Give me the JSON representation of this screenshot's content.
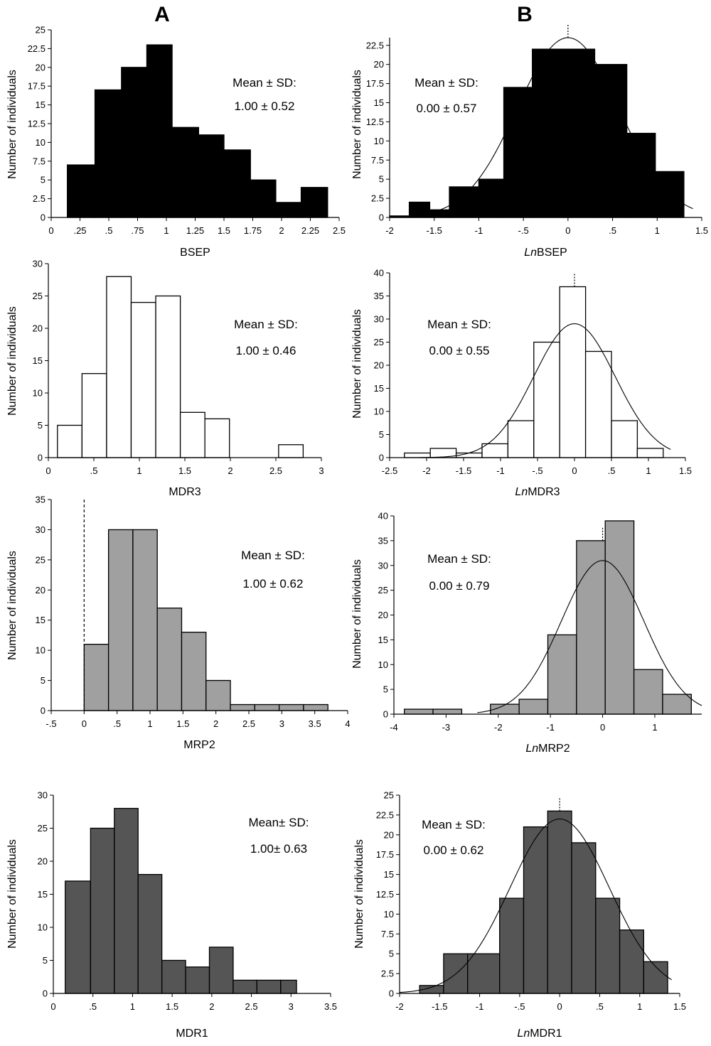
{
  "panel_labels": {
    "a": "A",
    "b": "B"
  },
  "styles": {
    "black": "#000000",
    "white": "#ffffff",
    "light_gray": "#a0a0a0",
    "dark_gray": "#555555",
    "axis": "#000000"
  },
  "chart_data": [
    {
      "id": "bsep",
      "type": "bar",
      "column": "A",
      "xlabel": "BSEP",
      "ylabel": "Number of individuals",
      "stat_label": "Mean ± SD:",
      "stat_value": "1.00 ± 0.52",
      "xlim": [
        0,
        2.5
      ],
      "ylim": [
        0,
        25
      ],
      "xticks": [
        {
          "v": 0,
          "t": "0"
        },
        {
          "v": 0.25,
          "t": ".25"
        },
        {
          "v": 0.5,
          "t": ".5"
        },
        {
          "v": 0.75,
          "t": ".75"
        },
        {
          "v": 1,
          "t": "1"
        },
        {
          "v": 1.25,
          "t": "1.25"
        },
        {
          "v": 1.5,
          "t": "1.5"
        },
        {
          "v": 1.75,
          "t": "1.75"
        },
        {
          "v": 2,
          "t": "2"
        },
        {
          "v": 2.25,
          "t": "2.25"
        },
        {
          "v": 2.5,
          "t": "2.5"
        }
      ],
      "yticks": [
        {
          "v": 0,
          "t": "0"
        },
        {
          "v": 2.5,
          "t": "2.5"
        },
        {
          "v": 5,
          "t": "5"
        },
        {
          "v": 7.5,
          "t": "7.5"
        },
        {
          "v": 10,
          "t": "10"
        },
        {
          "v": 12.5,
          "t": "12.5"
        },
        {
          "v": 15,
          "t": "15"
        },
        {
          "v": 17.5,
          "t": "17.5"
        },
        {
          "v": 20,
          "t": "20"
        },
        {
          "v": 22.5,
          "t": "22.5"
        },
        {
          "v": 25,
          "t": "25"
        }
      ],
      "bin_edges": [
        0.14,
        0.38,
        0.61,
        0.83,
        1.05,
        1.28,
        1.5,
        1.73,
        1.95,
        2.17,
        2.4
      ],
      "counts": [
        7,
        17,
        20,
        23,
        12,
        11,
        9,
        5,
        2,
        4
      ],
      "fill": "black"
    },
    {
      "id": "ln-bsep",
      "type": "bar",
      "column": "B",
      "xlabel_italic": "Ln",
      "xlabel_rest": "BSEP",
      "ylabel": "Number of individuals",
      "stat_label": "Mean ± SD:",
      "stat_value": "0.00 ± 0.57",
      "xlim": [
        -2,
        1.5
      ],
      "ylim": [
        0,
        23.5
      ],
      "xticks": [
        {
          "v": -2,
          "t": "-2"
        },
        {
          "v": -1.5,
          "t": "-1.5"
        },
        {
          "v": -1,
          "t": "-1"
        },
        {
          "v": -0.5,
          "t": "-.5"
        },
        {
          "v": 0,
          "t": "0"
        },
        {
          "v": 0.5,
          "t": ".5"
        },
        {
          "v": 1,
          "t": "1"
        },
        {
          "v": 1.5,
          "t": "1.5"
        }
      ],
      "yticks": [
        {
          "v": 0,
          "t": "0"
        },
        {
          "v": 2.5,
          "t": "2.5"
        },
        {
          "v": 5,
          "t": "5"
        },
        {
          "v": 7.5,
          "t": "7.5"
        },
        {
          "v": 10,
          "t": "10"
        },
        {
          "v": 12.5,
          "t": "12.5"
        },
        {
          "v": 15,
          "t": "15"
        },
        {
          "v": 17.5,
          "t": "17.5"
        },
        {
          "v": 20,
          "t": "20"
        },
        {
          "v": 22.5,
          "t": "22.5"
        }
      ],
      "bin_edges": [
        -2.0,
        -1.78,
        -1.55,
        -1.33,
        -1.0,
        -0.72,
        -0.4,
        -0.05,
        0.3,
        0.66,
        0.98,
        1.3
      ],
      "counts": [
        0.2,
        2,
        1,
        4,
        5,
        17,
        22,
        22,
        20,
        11,
        6
      ],
      "fill": "black",
      "curve": {
        "mean": 0.0,
        "sd": 0.57,
        "peak": 23.5,
        "x_range": [
          -2,
          1.4
        ]
      },
      "mean_marker": 0.0
    },
    {
      "id": "mdr3",
      "type": "bar",
      "column": "A",
      "xlabel": "MDR3",
      "ylabel": "Number of individuals",
      "stat_label": "Mean ± SD:",
      "stat_value": "1.00 ± 0.46",
      "xlim": [
        0,
        3
      ],
      "ylim": [
        0,
        30
      ],
      "xticks": [
        {
          "v": 0,
          "t": "0"
        },
        {
          "v": 0.5,
          "t": ".5"
        },
        {
          "v": 1,
          "t": "1"
        },
        {
          "v": 1.5,
          "t": "1.5"
        },
        {
          "v": 2,
          "t": "2"
        },
        {
          "v": 2.5,
          "t": "2.5"
        },
        {
          "v": 3,
          "t": "3"
        }
      ],
      "yticks": [
        {
          "v": 0,
          "t": "0"
        },
        {
          "v": 5,
          "t": "5"
        },
        {
          "v": 10,
          "t": "10"
        },
        {
          "v": 15,
          "t": "15"
        },
        {
          "v": 20,
          "t": "20"
        },
        {
          "v": 25,
          "t": "25"
        },
        {
          "v": 30,
          "t": "30"
        }
      ],
      "bin_edges": [
        0.1,
        0.37,
        0.64,
        0.91,
        1.18,
        1.45,
        1.72,
        1.99,
        2.26,
        2.53,
        2.8
      ],
      "counts": [
        5,
        13,
        28,
        24,
        25,
        7,
        6,
        0,
        0,
        2
      ],
      "fill": "white"
    },
    {
      "id": "ln-mdr3",
      "type": "bar",
      "column": "B",
      "xlabel_italic": "Ln",
      "xlabel_rest": "MDR3",
      "ylabel": "Number of individuals",
      "stat_label": "Mean ± SD:",
      "stat_value": "0.00 ± 0.55",
      "xlim": [
        -2.5,
        1.5
      ],
      "ylim": [
        0,
        40
      ],
      "xticks": [
        {
          "v": -2.5,
          "t": "-2.5"
        },
        {
          "v": -2,
          "t": "-2"
        },
        {
          "v": -1.5,
          "t": "-1.5"
        },
        {
          "v": -1,
          "t": "-1"
        },
        {
          "v": -0.5,
          "t": "-.5"
        },
        {
          "v": 0,
          "t": "0"
        },
        {
          "v": 0.5,
          "t": ".5"
        },
        {
          "v": 1,
          "t": "1"
        },
        {
          "v": 1.5,
          "t": "1.5"
        }
      ],
      "yticks": [
        {
          "v": 0,
          "t": "0"
        },
        {
          "v": 5,
          "t": "5"
        },
        {
          "v": 10,
          "t": "10"
        },
        {
          "v": 15,
          "t": "15"
        },
        {
          "v": 20,
          "t": "20"
        },
        {
          "v": 25,
          "t": "25"
        },
        {
          "v": 30,
          "t": "30"
        },
        {
          "v": 35,
          "t": "35"
        },
        {
          "v": 40,
          "t": "40"
        }
      ],
      "bin_edges": [
        -2.3,
        -1.95,
        -1.6,
        -1.25,
        -0.9,
        -0.55,
        -0.2,
        0.15,
        0.5,
        0.85,
        1.2,
        1.55
      ],
      "counts": [
        1,
        2,
        1,
        3,
        8,
        25,
        37,
        23,
        8,
        2,
        0
      ],
      "fill": "white",
      "curve": {
        "mean": 0.0,
        "sd": 0.55,
        "peak": 29,
        "x_range": [
          -2.1,
          1.3
        ]
      },
      "mean_marker": 0.0
    },
    {
      "id": "mrp2",
      "type": "bar",
      "column": "A",
      "xlabel": "MRP2",
      "ylabel": "Number of individuals",
      "stat_label": "Mean ± SD:",
      "stat_value": "1.00 ± 0.62",
      "xlim": [
        -0.5,
        4
      ],
      "ylim": [
        0,
        35
      ],
      "xticks": [
        {
          "v": -0.5,
          "t": "-.5"
        },
        {
          "v": 0,
          "t": "0"
        },
        {
          "v": 0.5,
          "t": ".5"
        },
        {
          "v": 1,
          "t": "1"
        },
        {
          "v": 1.5,
          "t": "1.5"
        },
        {
          "v": 2,
          "t": "2"
        },
        {
          "v": 2.5,
          "t": "2.5"
        },
        {
          "v": 3,
          "t": "3"
        },
        {
          "v": 3.5,
          "t": "3.5"
        },
        {
          "v": 4,
          "t": "4"
        }
      ],
      "yticks": [
        {
          "v": 0,
          "t": "0"
        },
        {
          "v": 5,
          "t": "5"
        },
        {
          "v": 10,
          "t": "10"
        },
        {
          "v": 15,
          "t": "15"
        },
        {
          "v": 20,
          "t": "20"
        },
        {
          "v": 25,
          "t": "25"
        },
        {
          "v": 30,
          "t": "30"
        },
        {
          "v": 35,
          "t": "35"
        }
      ],
      "bin_edges": [
        0.0,
        0.37,
        0.74,
        1.11,
        1.48,
        1.85,
        2.22,
        2.59,
        2.96,
        3.33,
        3.7
      ],
      "counts": [
        11,
        30,
        30,
        17,
        13,
        5,
        1,
        1,
        1,
        1
      ],
      "fill": "light_gray",
      "dashed_vline": 0
    },
    {
      "id": "ln-mrp2",
      "type": "bar",
      "column": "B",
      "xlabel_italic": "Ln",
      "xlabel_rest": "MRP2",
      "ylabel": "Number of individuals",
      "stat_label": "Mean ± SD:",
      "stat_value": "0.00 ± 0.79",
      "xlim": [
        -4,
        1.9
      ],
      "ylim": [
        0,
        40
      ],
      "xticks": [
        {
          "v": -4,
          "t": "-4"
        },
        {
          "v": -3,
          "t": "-3"
        },
        {
          "v": -2,
          "t": "-2"
        },
        {
          "v": -1,
          "t": "-1"
        },
        {
          "v": 0,
          "t": "0"
        },
        {
          "v": 1,
          "t": "1"
        }
      ],
      "yticks": [
        {
          "v": 0,
          "t": "0"
        },
        {
          "v": 5,
          "t": "5"
        },
        {
          "v": 10,
          "t": "10"
        },
        {
          "v": 15,
          "t": "15"
        },
        {
          "v": 20,
          "t": "20"
        },
        {
          "v": 25,
          "t": "25"
        },
        {
          "v": 30,
          "t": "30"
        },
        {
          "v": 35,
          "t": "35"
        },
        {
          "v": 40,
          "t": "40"
        }
      ],
      "bin_edges": [
        -3.8,
        -3.25,
        -2.7,
        -2.15,
        -1.6,
        -1.05,
        -0.5,
        0.05,
        0.6,
        1.15,
        1.7
      ],
      "counts": [
        1,
        1,
        0,
        2,
        3,
        16,
        35,
        39,
        9,
        4
      ],
      "fill": "light_gray",
      "curve": {
        "mean": 0.0,
        "sd": 0.79,
        "peak": 31,
        "x_range": [
          -2.4,
          1.9
        ]
      },
      "mean_marker": 0.0
    },
    {
      "id": "mdr1",
      "type": "bar",
      "column": "A",
      "xlabel": "MDR1",
      "ylabel": "Number of individuals",
      "stat_label": "Mean± SD:",
      "stat_value": "1.00± 0.63",
      "xlim": [
        0,
        3.5
      ],
      "ylim": [
        0,
        30
      ],
      "xticks": [
        {
          "v": 0,
          "t": "0"
        },
        {
          "v": 0.5,
          "t": ".5"
        },
        {
          "v": 1,
          "t": "1"
        },
        {
          "v": 1.5,
          "t": "1.5"
        },
        {
          "v": 2,
          "t": "2"
        },
        {
          "v": 2.5,
          "t": "2.5"
        },
        {
          "v": 3,
          "t": "3"
        },
        {
          "v": 3.5,
          "t": "3.5"
        }
      ],
      "yticks": [
        {
          "v": 0,
          "t": "0"
        },
        {
          "v": 5,
          "t": "5"
        },
        {
          "v": 10,
          "t": "10"
        },
        {
          "v": 15,
          "t": "15"
        },
        {
          "v": 20,
          "t": "20"
        },
        {
          "v": 25,
          "t": "25"
        },
        {
          "v": 30,
          "t": "30"
        }
      ],
      "bin_edges": [
        0.15,
        0.47,
        0.77,
        1.07,
        1.37,
        1.67,
        1.97,
        2.27,
        2.57,
        2.87,
        3.07
      ],
      "counts": [
        17,
        25,
        28,
        18,
        5,
        4,
        7,
        2,
        2,
        2
      ],
      "fill": "dark_gray"
    },
    {
      "id": "ln-mdr1",
      "type": "bar",
      "column": "B",
      "xlabel_italic": "Ln",
      "xlabel_rest": "MDR1",
      "ylabel": "Number of individuals",
      "stat_label": "Mean ± SD:",
      "stat_value": "0.00 ± 0.62",
      "xlim": [
        -2,
        1.5
      ],
      "ylim": [
        0,
        25
      ],
      "xticks": [
        {
          "v": -2,
          "t": "-2"
        },
        {
          "v": -1.5,
          "t": "-1.5"
        },
        {
          "v": -1,
          "t": "-1"
        },
        {
          "v": -0.5,
          "t": "-.5"
        },
        {
          "v": 0,
          "t": "0"
        },
        {
          "v": 0.5,
          "t": ".5"
        },
        {
          "v": 1,
          "t": "1"
        },
        {
          "v": 1.5,
          "t": "1.5"
        }
      ],
      "yticks": [
        {
          "v": 0,
          "t": "0"
        },
        {
          "v": 2.5,
          "t": "2.5"
        },
        {
          "v": 5,
          "t": "5"
        },
        {
          "v": 7.5,
          "t": "7.5"
        },
        {
          "v": 10,
          "t": "10"
        },
        {
          "v": 12.5,
          "t": "12.5"
        },
        {
          "v": 15,
          "t": "15"
        },
        {
          "v": 17.5,
          "t": "17.5"
        },
        {
          "v": 20,
          "t": "20"
        },
        {
          "v": 22.5,
          "t": "22.5"
        },
        {
          "v": 25,
          "t": "25"
        }
      ],
      "bin_edges": [
        -1.75,
        -1.45,
        -1.15,
        -0.75,
        -0.45,
        -0.15,
        0.15,
        0.45,
        0.75,
        1.05,
        1.35
      ],
      "counts": [
        1,
        5,
        5,
        12,
        21,
        23,
        19,
        12,
        8,
        4
      ],
      "fill": "dark_gray",
      "curve": {
        "mean": 0.0,
        "sd": 0.62,
        "peak": 22,
        "x_range": [
          -2,
          1.4
        ]
      },
      "mean_marker": 0.0
    }
  ]
}
